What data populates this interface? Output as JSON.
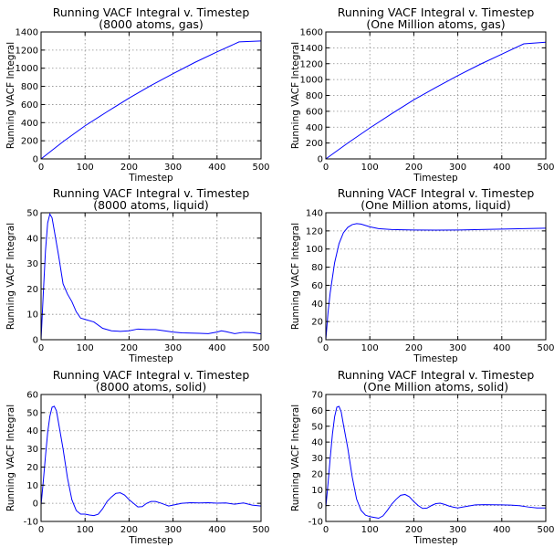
{
  "chart_data": [
    {
      "type": "line",
      "title": "Running VACF Integral v. Timestep",
      "subtitle": "(8000 atoms, gas)",
      "xlabel": "Timestep",
      "ylabel": "Running VACF Integral",
      "xlim": [
        0,
        500
      ],
      "ylim": [
        0,
        1400
      ],
      "xticks": [
        0,
        100,
        200,
        300,
        400,
        500
      ],
      "yticks": [
        0,
        200,
        400,
        600,
        800,
        1000,
        1200,
        1400
      ],
      "grid": true,
      "color": "#0000ff",
      "x": [
        0,
        50,
        100,
        150,
        200,
        250,
        300,
        350,
        400,
        450,
        500
      ],
      "y": [
        0,
        190,
        365,
        520,
        670,
        810,
        940,
        1065,
        1180,
        1290,
        1300
      ]
    },
    {
      "type": "line",
      "title": "Running VACF Integral v. Timestep",
      "subtitle": "(One Million atoms, gas)",
      "xlabel": "Timestep",
      "ylabel": "Running VACF Integral",
      "xlim": [
        0,
        500
      ],
      "ylim": [
        0,
        1600
      ],
      "xticks": [
        0,
        100,
        200,
        300,
        400,
        500
      ],
      "yticks": [
        0,
        200,
        400,
        600,
        800,
        1000,
        1200,
        1400,
        1600
      ],
      "grid": true,
      "color": "#0000ff",
      "x": [
        0,
        50,
        100,
        150,
        200,
        250,
        300,
        350,
        400,
        450,
        500
      ],
      "y": [
        0,
        200,
        390,
        570,
        745,
        900,
        1050,
        1190,
        1320,
        1450,
        1470
      ]
    },
    {
      "type": "line",
      "title": "Running VACF Integral v. Timestep",
      "subtitle": "(8000 atoms, liquid)",
      "xlabel": "Timestep",
      "ylabel": "Running VACF Integral",
      "xlim": [
        0,
        500
      ],
      "ylim": [
        0,
        50
      ],
      "xticks": [
        0,
        100,
        200,
        300,
        400,
        500
      ],
      "yticks": [
        0,
        10,
        20,
        30,
        40,
        50
      ],
      "grid": true,
      "color": "#0000ff",
      "x": [
        0,
        5,
        10,
        15,
        20,
        25,
        30,
        40,
        50,
        60,
        70,
        80,
        90,
        100,
        120,
        140,
        160,
        180,
        200,
        220,
        240,
        260,
        280,
        300,
        320,
        340,
        360,
        380,
        400,
        410,
        420,
        440,
        460,
        480,
        500
      ],
      "y": [
        0,
        18,
        35,
        46,
        49.5,
        48,
        43,
        33,
        22,
        18,
        15,
        11,
        8.5,
        8,
        7,
        4.5,
        3.5,
        3.3,
        3.5,
        4.2,
        4,
        4,
        3.5,
        3,
        2.7,
        2.6,
        2.5,
        2.4,
        3,
        3.5,
        3.2,
        2.4,
        2.9,
        2.8,
        2.3
      ]
    },
    {
      "type": "line",
      "title": "Running VACF Integral v. Timestep",
      "subtitle": "(One Million atoms, liquid)",
      "xlabel": "Timestep",
      "ylabel": "Running VACF Integral",
      "xlim": [
        0,
        500
      ],
      "ylim": [
        0,
        140
      ],
      "xticks": [
        0,
        100,
        200,
        300,
        400,
        500
      ],
      "yticks": [
        0,
        20,
        40,
        60,
        80,
        100,
        120,
        140
      ],
      "grid": true,
      "color": "#0000ff",
      "x": [
        0,
        5,
        10,
        20,
        30,
        40,
        50,
        60,
        70,
        80,
        90,
        100,
        120,
        150,
        200,
        250,
        300,
        350,
        400,
        450,
        500
      ],
      "y": [
        0,
        30,
        52,
        85,
        106,
        118,
        124,
        127,
        128,
        127.5,
        126,
        124.5,
        122.5,
        121.5,
        121,
        120.8,
        121,
        121.5,
        122,
        122.5,
        123
      ]
    },
    {
      "type": "line",
      "title": "Running VACF Integral v. Timestep",
      "subtitle": "(8000 atoms, solid)",
      "xlabel": "Timestep",
      "ylabel": "Running VACF Integral",
      "xlim": [
        0,
        500
      ],
      "ylim": [
        -10,
        60
      ],
      "xticks": [
        0,
        100,
        200,
        300,
        400,
        500
      ],
      "yticks": [
        -10,
        0,
        10,
        20,
        30,
        40,
        50,
        60
      ],
      "grid": true,
      "color": "#0000ff",
      "x": [
        0,
        5,
        10,
        15,
        20,
        25,
        30,
        35,
        40,
        50,
        60,
        70,
        80,
        90,
        100,
        110,
        120,
        130,
        140,
        150,
        160,
        170,
        180,
        190,
        200,
        210,
        220,
        230,
        240,
        250,
        260,
        270,
        280,
        290,
        300,
        320,
        340,
        360,
        380,
        400,
        420,
        440,
        460,
        480,
        500
      ],
      "y": [
        -1,
        12,
        26,
        39,
        48,
        53,
        53.5,
        51,
        44,
        30,
        14,
        2,
        -4,
        -6,
        -6,
        -6.5,
        -6.8,
        -6,
        -3,
        1,
        3.5,
        5.5,
        5.8,
        4.5,
        2,
        0,
        -2,
        -1.8,
        0,
        1,
        1,
        0.3,
        -0.6,
        -1.5,
        -1,
        0,
        0.3,
        0.2,
        0.3,
        0.1,
        0.2,
        -0.5,
        0.2,
        -1,
        -1.5
      ]
    },
    {
      "type": "line",
      "title": "Running VACF Integral v. Timestep",
      "subtitle": "(One Million atoms, solid)",
      "xlabel": "Timestep",
      "ylabel": "Running VACF Integral",
      "xlim": [
        0,
        500
      ],
      "ylim": [
        -10,
        70
      ],
      "xticks": [
        0,
        100,
        200,
        300,
        400,
        500
      ],
      "yticks": [
        -10,
        0,
        10,
        20,
        30,
        40,
        50,
        60,
        70
      ],
      "grid": true,
      "color": "#0000ff",
      "x": [
        0,
        5,
        10,
        15,
        20,
        25,
        30,
        35,
        40,
        50,
        60,
        70,
        80,
        90,
        100,
        110,
        120,
        130,
        140,
        150,
        160,
        170,
        180,
        190,
        200,
        210,
        220,
        230,
        240,
        250,
        260,
        270,
        280,
        290,
        300,
        320,
        340,
        360,
        380,
        400,
        420,
        440,
        460,
        480,
        500
      ],
      "y": [
        -1,
        14,
        30,
        45,
        56,
        62,
        62.5,
        59,
        51,
        36,
        18,
        4,
        -3,
        -6,
        -7,
        -7.5,
        -8,
        -6.5,
        -3,
        1,
        4,
        6.5,
        7,
        5.5,
        2.5,
        0,
        -1.8,
        -1.6,
        0,
        1.2,
        1.5,
        0.7,
        -0.3,
        -1,
        -1.5,
        -0.5,
        0.4,
        0.6,
        0.5,
        0.4,
        0.3,
        -0.1,
        -0.9,
        -1.5,
        -1.5
      ]
    }
  ]
}
